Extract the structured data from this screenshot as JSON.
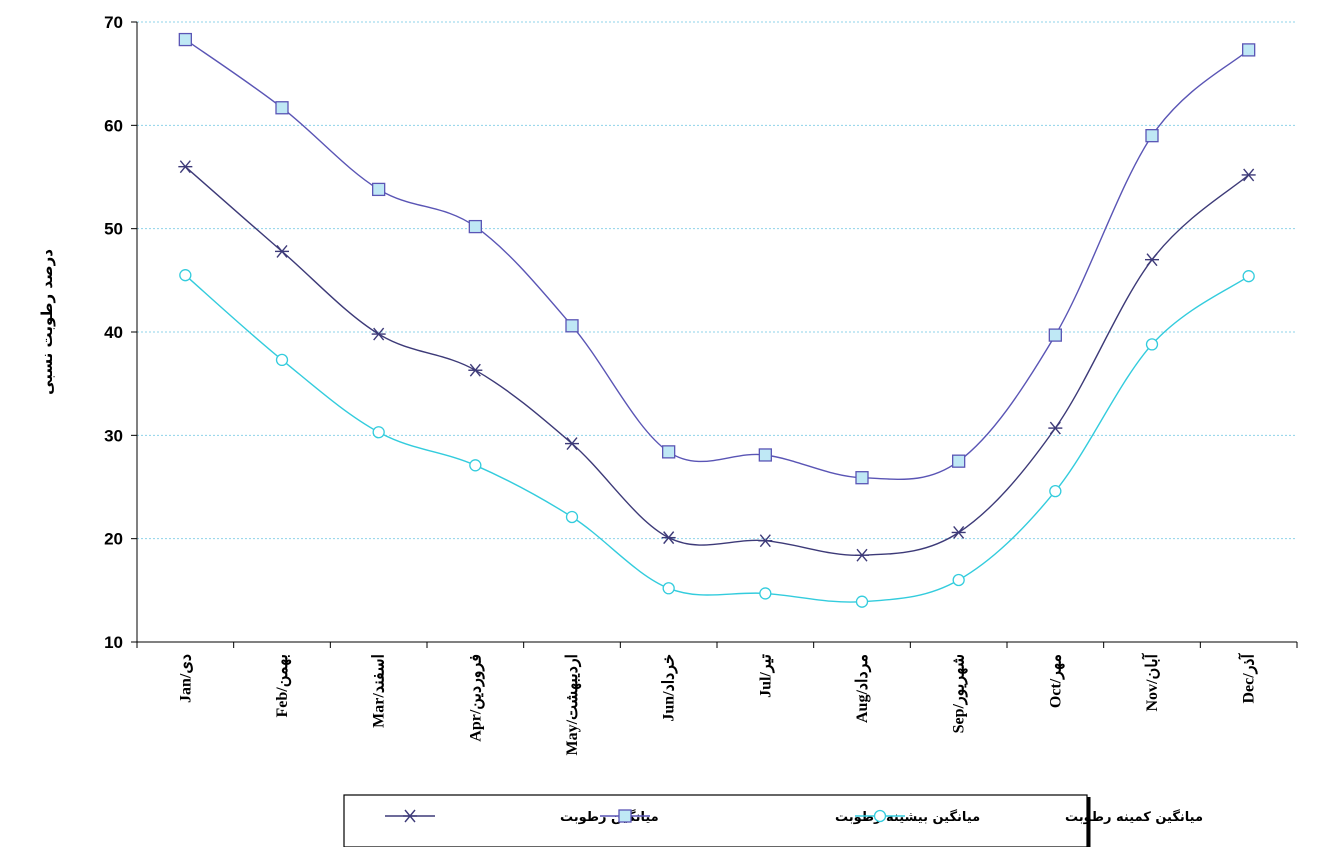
{
  "chart_data": {
    "type": "line",
    "categories": [
      "Jan/دی",
      "Feb/بهمن",
      "Mar/اسفند",
      "Apr/فروردین",
      "May/اردیبهشت",
      "Jun/خرداد",
      "Jul/تیر",
      "Aug/مرداد",
      "Sep/شهریور",
      "Oct/مهر",
      "Nov/آبان",
      "Dec/آذر"
    ],
    "ylabel": "درصد رطوبت نسبی",
    "ylim": [
      10,
      70
    ],
    "yticks": [
      10,
      20,
      30,
      40,
      50,
      60,
      70
    ],
    "grid": true,
    "legend_position": "bottom",
    "series": [
      {
        "name": "میانگین رطوبت",
        "marker": "asterisk",
        "color": "#3d3a78",
        "values": [
          56,
          47.8,
          39.8,
          36.3,
          29.2,
          20.1,
          19.8,
          18.4,
          20.6,
          30.7,
          47,
          55.2
        ]
      },
      {
        "name": "میانگین بیشینه رطوبت",
        "marker": "square",
        "color": "#5a55b5",
        "values": [
          68.3,
          61.7,
          53.8,
          50.2,
          40.6,
          28.4,
          28.1,
          25.9,
          27.5,
          39.7,
          59,
          67.3
        ]
      },
      {
        "name": "میانگین کمینه رطوبت",
        "marker": "circle",
        "color": "#33ccdd",
        "values": [
          45.5,
          37.3,
          30.3,
          27.1,
          22.1,
          15.2,
          14.7,
          13.9,
          16,
          24.6,
          38.8,
          45.4
        ]
      }
    ]
  }
}
